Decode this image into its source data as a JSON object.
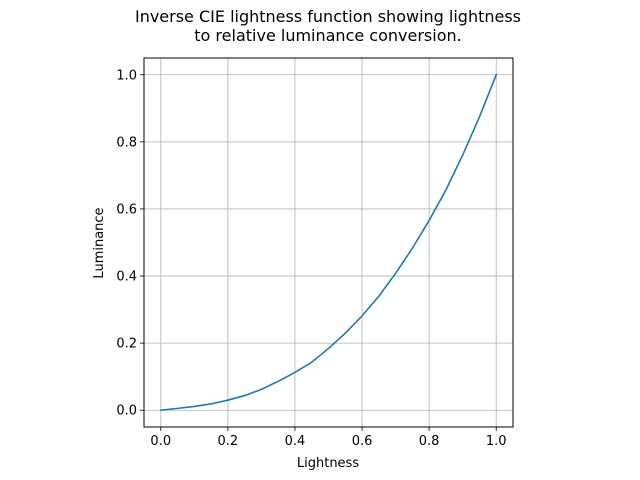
{
  "chart_data": {
    "type": "line",
    "title": "Inverse CIE lightness function showing lightness\nto relative luminance conversion.",
    "xlabel": "Lightness",
    "ylabel": "Luminance",
    "xlim": [
      -0.05,
      1.05
    ],
    "ylim": [
      -0.05,
      1.05
    ],
    "xticks": [
      0.0,
      0.2,
      0.4,
      0.6,
      0.8,
      1.0
    ],
    "yticks": [
      0.0,
      0.2,
      0.4,
      0.6,
      0.8,
      1.0
    ],
    "xtick_labels": [
      "0.0",
      "0.2",
      "0.4",
      "0.6",
      "0.8",
      "1.0"
    ],
    "ytick_labels": [
      "0.0",
      "0.2",
      "0.4",
      "0.6",
      "0.8",
      "1.0"
    ],
    "grid": true,
    "series": [
      {
        "color": "#1f77b4",
        "x": [
          0.0,
          0.05,
          0.1,
          0.15,
          0.2,
          0.25,
          0.3,
          0.35,
          0.4,
          0.45,
          0.5,
          0.55,
          0.6,
          0.65,
          0.7,
          0.75,
          0.8,
          0.85,
          0.9,
          0.95,
          1.0
        ],
        "y": [
          0.0,
          0.0055,
          0.0114,
          0.019,
          0.0299,
          0.0437,
          0.0622,
          0.0862,
          0.1126,
          0.1432,
          0.1842,
          0.2295,
          0.2812,
          0.3398,
          0.4077,
          0.4829,
          0.5658,
          0.6564,
          0.7606,
          0.8742,
          1.0
        ]
      }
    ]
  }
}
